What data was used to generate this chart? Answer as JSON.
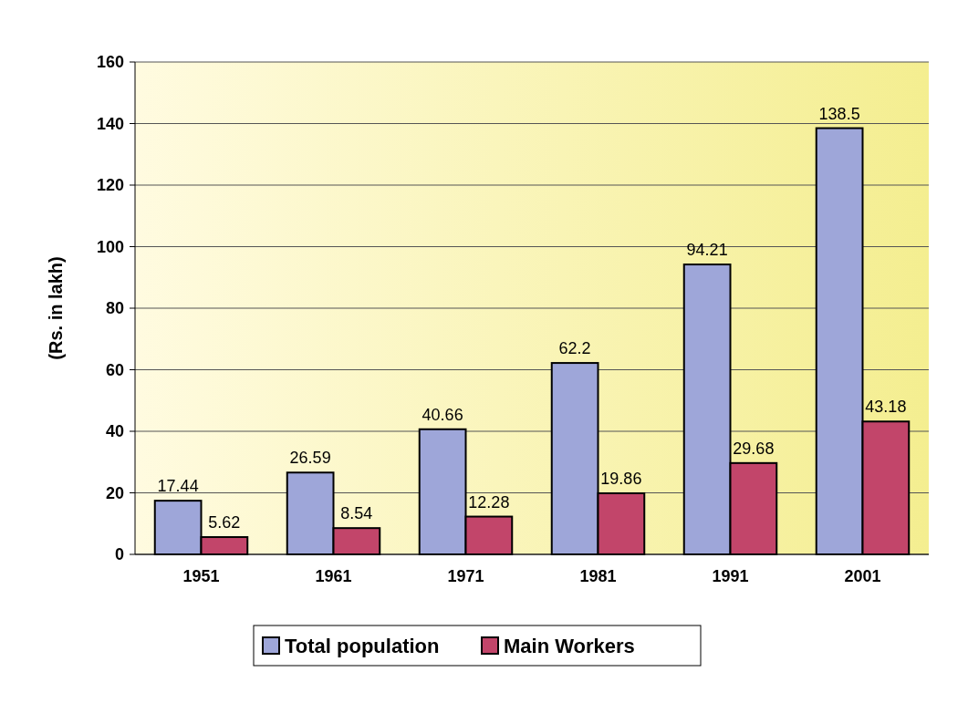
{
  "chart_data": {
    "type": "bar",
    "ylabel": "(Rs. in lakh)",
    "categories": [
      "1951",
      "1961",
      "1971",
      "1981",
      "1991",
      "2001"
    ],
    "series": [
      {
        "name": "Total population",
        "color": "#9ea6d9",
        "values": [
          17.44,
          26.59,
          40.66,
          62.2,
          94.21,
          138.5
        ]
      },
      {
        "name": "Main Workers",
        "color": "#c2456a",
        "values": [
          5.62,
          8.54,
          12.28,
          19.86,
          29.68,
          43.18
        ]
      }
    ],
    "ylim": [
      0,
      160
    ],
    "yticks": [
      0,
      20,
      40,
      60,
      80,
      100,
      120,
      140,
      160
    ],
    "grid": "y",
    "legend": "bottom",
    "data_labels": true
  }
}
